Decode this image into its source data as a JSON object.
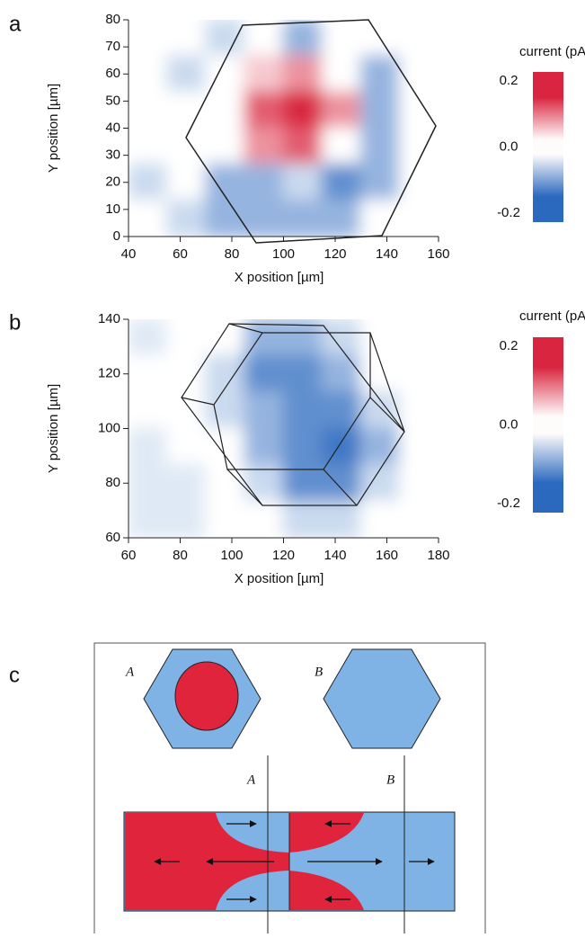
{
  "chart_data": [
    {
      "type": "heatmap",
      "panel": "a",
      "xlabel": "X position [µm]",
      "ylabel": "Y position [µm]",
      "xlim": [
        40,
        160
      ],
      "xticks": [
        40,
        60,
        80,
        100,
        120,
        140,
        160
      ],
      "ylim": [
        0,
        80
      ],
      "yticks": [
        0,
        10,
        20,
        30,
        40,
        50,
        60,
        70,
        80
      ],
      "colorbar_title": "current (pA)",
      "clim": [
        -0.2,
        0.2
      ],
      "cticks": [
        0.2,
        {
          "value": 0,
          "label": "0.0"
        },
        -0.2
      ],
      "positive_color": "#d9253f",
      "negative_color": "#2b69bf",
      "z": [
        [
          0,
          0,
          -0.05,
          0,
          -0.1,
          0,
          0,
          0
        ],
        [
          0,
          -0.05,
          0,
          0.05,
          0.1,
          0,
          -0.1,
          0
        ],
        [
          0,
          0,
          0,
          0.15,
          0.2,
          0.1,
          -0.1,
          0
        ],
        [
          0,
          0,
          0,
          0.1,
          0.15,
          0,
          -0.1,
          0
        ],
        [
          -0.05,
          0,
          -0.1,
          -0.1,
          -0.05,
          -0.15,
          -0.1,
          0
        ],
        [
          0,
          -0.05,
          -0.1,
          -0.1,
          -0.1,
          -0.1,
          0,
          0
        ]
      ]
    },
    {
      "type": "heatmap",
      "panel": "b",
      "xlabel": "X position [µm]",
      "ylabel": "Y position [µm]",
      "xlim": [
        60,
        180
      ],
      "xticks": [
        60,
        80,
        100,
        120,
        140,
        160,
        180
      ],
      "ylim": [
        60,
        140
      ],
      "yticks": [
        60,
        80,
        100,
        120,
        140
      ],
      "colorbar_title": "current (pA)",
      "clim": [
        -0.2,
        0.2
      ],
      "cticks": [
        0.2,
        {
          "value": 0,
          "label": "0.0"
        },
        -0.2
      ],
      "positive_color": "#d9253f",
      "negative_color": "#2b69bf",
      "z": [
        [
          -0.03,
          0,
          0,
          -0.1,
          -0.1,
          -0.05,
          0,
          0
        ],
        [
          0,
          0,
          -0.05,
          -0.15,
          -0.15,
          -0.1,
          0,
          0
        ],
        [
          0,
          0,
          -0.05,
          -0.1,
          -0.15,
          -0.15,
          -0.05,
          0
        ],
        [
          -0.03,
          0,
          0,
          -0.1,
          -0.15,
          -0.18,
          -0.1,
          0
        ],
        [
          -0.03,
          -0.03,
          0,
          -0.05,
          -0.15,
          -0.15,
          -0.05,
          0
        ],
        [
          -0.03,
          -0.03,
          0,
          0,
          -0.05,
          -0.05,
          0,
          0
        ]
      ]
    }
  ],
  "diagram": {
    "panel": "c",
    "labels": [
      "A",
      "B",
      "A",
      "B"
    ]
  }
}
